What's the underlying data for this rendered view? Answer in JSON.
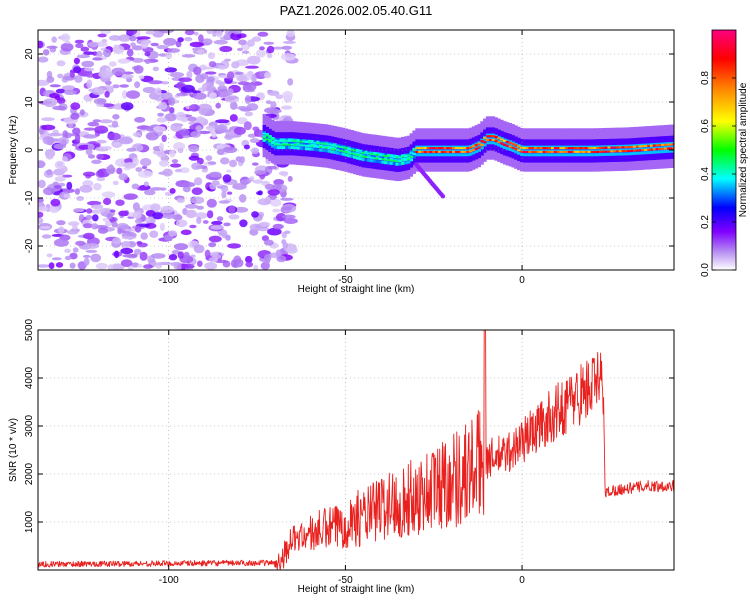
{
  "title": "PAZ1.2026.002.05.40.G11",
  "chart_data": [
    {
      "type": "heatmap",
      "xlabel": "Height of straight line (km)",
      "ylabel": "Frequency (Hz)",
      "xlim": [
        -137,
        43
      ],
      "ylim": [
        -25,
        25
      ],
      "xticks": [
        -100,
        -50,
        0
      ],
      "xtick_labels": [
        "-100",
        "-50",
        "0"
      ],
      "yticks": [
        -20,
        -10,
        0,
        10,
        20
      ],
      "ytick_labels": [
        "-20",
        "-10",
        "0",
        "10",
        "20"
      ],
      "noise_region_x": [
        -137,
        -68
      ],
      "ridge": {
        "x": [
          -73,
          -70,
          -65,
          -60,
          -55,
          -50,
          -45,
          -40,
          -35,
          -32,
          -30,
          -25,
          -20,
          -15,
          -12,
          -10,
          -8,
          -5,
          -3,
          0,
          5,
          10,
          20,
          30,
          43
        ],
        "y": [
          3,
          1.5,
          1.5,
          1.2,
          0.8,
          0,
          -1,
          -1.5,
          -2,
          -1.5,
          0,
          0,
          0,
          0,
          1,
          2.5,
          2.5,
          1.5,
          1,
          0,
          0,
          0,
          0,
          0.2,
          0.8
        ]
      },
      "colorbar": {
        "label": "Normalized spectral amplitude",
        "range": [
          0.0,
          1.0
        ],
        "ticks": [
          0.0,
          0.2,
          0.4,
          0.6,
          0.8
        ],
        "tick_labels": [
          "0.0",
          "0.2",
          "0.4",
          "0.6",
          "0.8"
        ],
        "colors": [
          "#ffffff",
          "#b388f2",
          "#8000ff",
          "#0000ff",
          "#00ffff",
          "#00ff00",
          "#ffff00",
          "#ff8000",
          "#ff0000",
          "#ff0080"
        ]
      }
    },
    {
      "type": "line",
      "xlabel": "Height of straight line (km)",
      "ylabel": "SNR (10 * v/v)",
      "xlim": [
        -137,
        43
      ],
      "ylim": [
        0,
        5000
      ],
      "xticks": [
        -100,
        -50,
        0
      ],
      "xtick_labels": [
        "-100",
        "-50",
        "0"
      ],
      "yticks": [
        1000,
        2000,
        3000,
        4000,
        5000
      ],
      "ytick_labels": [
        "1000",
        "2000",
        "3000",
        "4000",
        "5000"
      ],
      "series": [
        {
          "name": "SNR",
          "color": "#e8201e",
          "x": [
            -137,
            -70,
            -68,
            -65,
            -62,
            -60,
            -58,
            -55,
            -52,
            -50,
            -48,
            -45,
            -42,
            -40,
            -38,
            -35,
            -32,
            -30,
            -28,
            -25,
            -22,
            -20,
            -18,
            -15,
            -12,
            -10,
            -8,
            -5,
            -2,
            0,
            5,
            10,
            15,
            20,
            22,
            23,
            23.5,
            25,
            30,
            35,
            43
          ],
          "y": [
            120,
            150,
            250,
            650,
            700,
            750,
            800,
            850,
            900,
            1000,
            1050,
            1100,
            1200,
            1300,
            1350,
            1400,
            1450,
            1550,
            1600,
            1700,
            1850,
            1900,
            1950,
            2050,
            2200,
            2300,
            2350,
            2400,
            2550,
            2700,
            3000,
            3300,
            3600,
            3850,
            3900,
            3900,
            1600,
            1650,
            1700,
            1750,
            1750
          ]
        }
      ]
    }
  ]
}
